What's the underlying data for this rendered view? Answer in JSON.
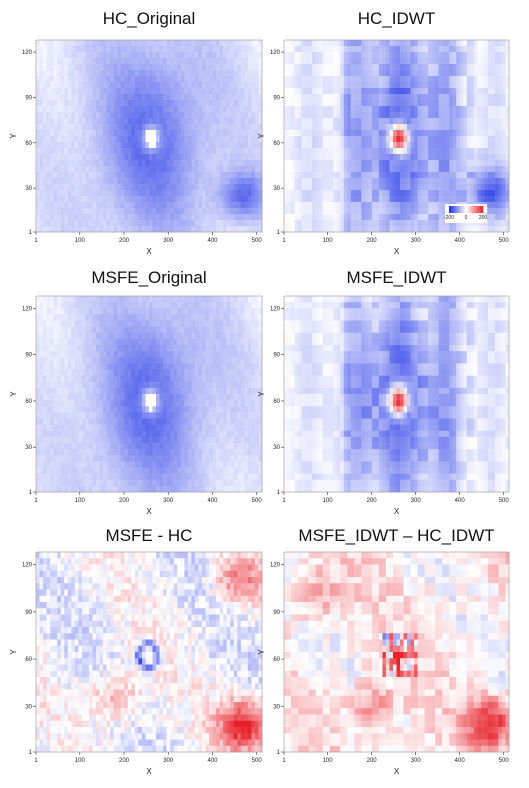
{
  "colors": {
    "negative": "#1a2ee6",
    "zero": "#ffffff",
    "positive": "#e8202a"
  },
  "chart_data": [
    {
      "type": "heatmap",
      "title": "HC_Original",
      "xlabel": "X",
      "ylabel": "Y",
      "xlim": [
        1,
        512
      ],
      "ylim": [
        1,
        128
      ],
      "xticks": [
        "1",
        "100",
        "200",
        "300",
        "400",
        "500"
      ],
      "yticks": [
        "1",
        "30",
        "60",
        "90",
        "120"
      ],
      "style": "original",
      "features": [
        {
          "kind": "center",
          "x": 262,
          "y": 63
        },
        {
          "kind": "patch",
          "x": 470,
          "y": 25,
          "sign": "negative",
          "strength": 0.45
        }
      ]
    },
    {
      "type": "heatmap",
      "title": "HC_IDWT",
      "xlabel": "X",
      "ylabel": "Y",
      "xlim": [
        1,
        512
      ],
      "ylim": [
        1,
        128
      ],
      "xticks": [
        "1",
        "100",
        "200",
        "300",
        "400",
        "500"
      ],
      "yticks": [
        "1",
        "30",
        "60",
        "90",
        "120"
      ],
      "style": "idwt",
      "features": [
        {
          "kind": "center",
          "x": 262,
          "y": 63
        },
        {
          "kind": "patch",
          "x": 470,
          "y": 28,
          "sign": "negative",
          "strength": 0.55
        }
      ],
      "colorbar": {
        "ticks": [
          "-200",
          "0",
          "200"
        ],
        "min": -200,
        "max": 200
      }
    },
    {
      "type": "heatmap",
      "title": "MSFE_Original",
      "xlabel": "X",
      "ylabel": "Y",
      "xlim": [
        1,
        512
      ],
      "ylim": [
        1,
        128
      ],
      "xticks": [
        "1",
        "100",
        "200",
        "300",
        "400",
        "500"
      ],
      "yticks": [
        "1",
        "30",
        "60",
        "90",
        "120"
      ],
      "style": "original",
      "features": [
        {
          "kind": "center",
          "x": 260,
          "y": 60
        }
      ]
    },
    {
      "type": "heatmap",
      "title": "MSFE_IDWT",
      "xlabel": "X",
      "ylabel": "Y",
      "xlim": [
        1,
        512
      ],
      "ylim": [
        1,
        128
      ],
      "xticks": [
        "1",
        "100",
        "200",
        "300",
        "400",
        "500"
      ],
      "yticks": [
        "1",
        "30",
        "60",
        "90",
        "120"
      ],
      "style": "idwt",
      "features": [
        {
          "kind": "center",
          "x": 262,
          "y": 60
        }
      ]
    },
    {
      "type": "heatmap",
      "title": "MSFE -  HC",
      "xlabel": "X",
      "ylabel": "Y",
      "xlim": [
        1,
        512
      ],
      "ylim": [
        1,
        128
      ],
      "xticks": [
        "1",
        "100",
        "200",
        "300",
        "400",
        "500"
      ],
      "yticks": [
        "1",
        "30",
        "60",
        "90",
        "120"
      ],
      "style": "difference",
      "features": [
        {
          "kind": "ring",
          "x": 255,
          "y": 62,
          "sign": "negative"
        },
        {
          "kind": "patch",
          "x": 470,
          "y": 18,
          "sign": "positive",
          "strength": 0.9
        },
        {
          "kind": "patch",
          "x": 180,
          "y": 35,
          "sign": "positive",
          "strength": 0.4
        },
        {
          "kind": "patch",
          "x": 460,
          "y": 110,
          "sign": "positive",
          "strength": 0.5
        }
      ]
    },
    {
      "type": "heatmap",
      "title": "MSFE_IDWT – HC_IDWT",
      "xlabel": "X",
      "ylabel": "Y",
      "xlim": [
        1,
        512
      ],
      "ylim": [
        1,
        128
      ],
      "xticks": [
        "1",
        "100",
        "200",
        "300",
        "400",
        "500"
      ],
      "yticks": [
        "1",
        "30",
        "60",
        "90",
        "120"
      ],
      "style": "difference-idwt",
      "features": [
        {
          "kind": "center-mixed",
          "x": 262,
          "y": 62
        },
        {
          "kind": "patch",
          "x": 470,
          "y": 20,
          "sign": "positive",
          "strength": 0.75
        },
        {
          "kind": "patch",
          "x": 200,
          "y": 30,
          "sign": "positive",
          "strength": 0.4
        },
        {
          "kind": "patch",
          "x": 80,
          "y": 100,
          "sign": "positive",
          "strength": 0.3
        }
      ]
    }
  ]
}
